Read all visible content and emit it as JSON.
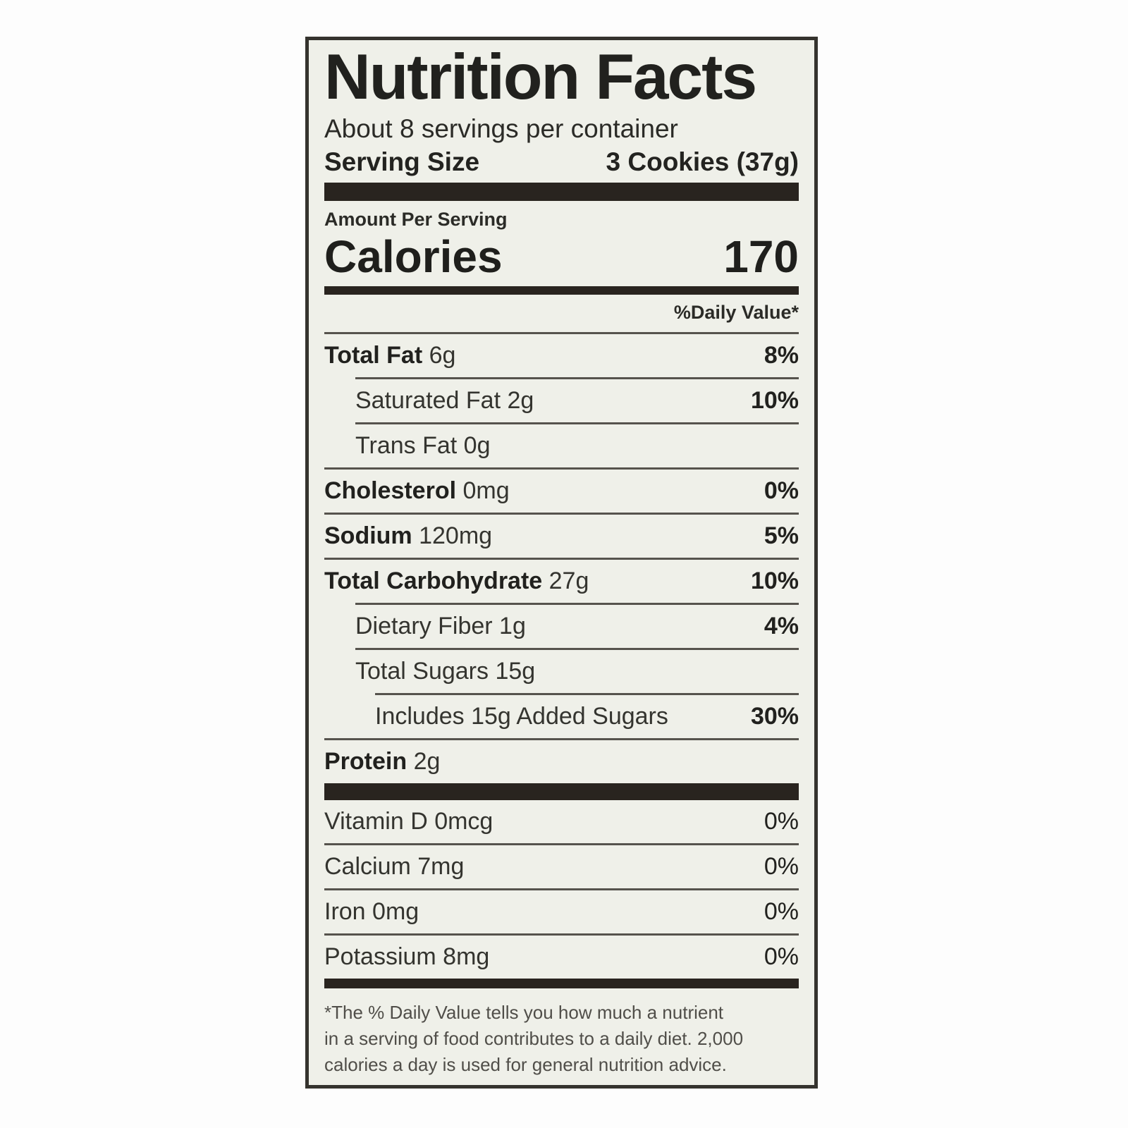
{
  "label": {
    "title": "Nutrition Facts",
    "servings_per_container": "About 8 servings per container",
    "serving_size_label": "Serving Size",
    "serving_size_value": "3 Cookies (37g)",
    "amount_per_serving": "Amount Per Serving",
    "calories_label": "Calories",
    "calories_value": "170",
    "daily_value_header": "%Daily Value*",
    "nutrients": [
      {
        "name": "Total Fat",
        "amount": "6g",
        "percent": "8%",
        "bold": true,
        "indent": 0
      },
      {
        "name": "Saturated Fat",
        "amount": "2g",
        "percent": "10%",
        "bold": false,
        "indent": 1
      },
      {
        "name": "Trans Fat",
        "amount": "0g",
        "percent": "",
        "bold": false,
        "indent": 1
      },
      {
        "name": "Cholesterol",
        "amount": "0mg",
        "percent": "0%",
        "bold": true,
        "indent": 0
      },
      {
        "name": "Sodium",
        "amount": "120mg",
        "percent": "5%",
        "bold": true,
        "indent": 0
      },
      {
        "name": "Total Carbohydrate",
        "amount": "27g",
        "percent": "10%",
        "bold": true,
        "indent": 0
      },
      {
        "name": "Dietary Fiber",
        "amount": "1g",
        "percent": "4%",
        "bold": false,
        "indent": 1
      },
      {
        "name": "Total Sugars",
        "amount": "15g",
        "percent": "",
        "bold": false,
        "indent": 1
      },
      {
        "name": "Includes 15g Added Sugars",
        "amount": "",
        "percent": "30%",
        "bold": false,
        "indent": 2
      },
      {
        "name": "Protein",
        "amount": "2g",
        "percent": "",
        "bold": true,
        "indent": 0
      }
    ],
    "micronutrients": [
      {
        "name": "Vitamin D",
        "amount": "0mcg",
        "percent": "0%"
      },
      {
        "name": "Calcium",
        "amount": "7mg",
        "percent": "0%"
      },
      {
        "name": "Iron",
        "amount": "0mg",
        "percent": "0%"
      },
      {
        "name": "Potassium",
        "amount": "8mg",
        "percent": "0%"
      }
    ],
    "footnote_lines": [
      "*The % Daily Value tells you how much a nutrient",
      "in a serving of food contributes to a daily diet. 2,000",
      "calories a day is used for general nutrition advice."
    ]
  },
  "colors": {
    "label_background": "#eff0e9",
    "border_and_bars": "#29241f",
    "text": "#232320",
    "hairline": "#56534d"
  }
}
